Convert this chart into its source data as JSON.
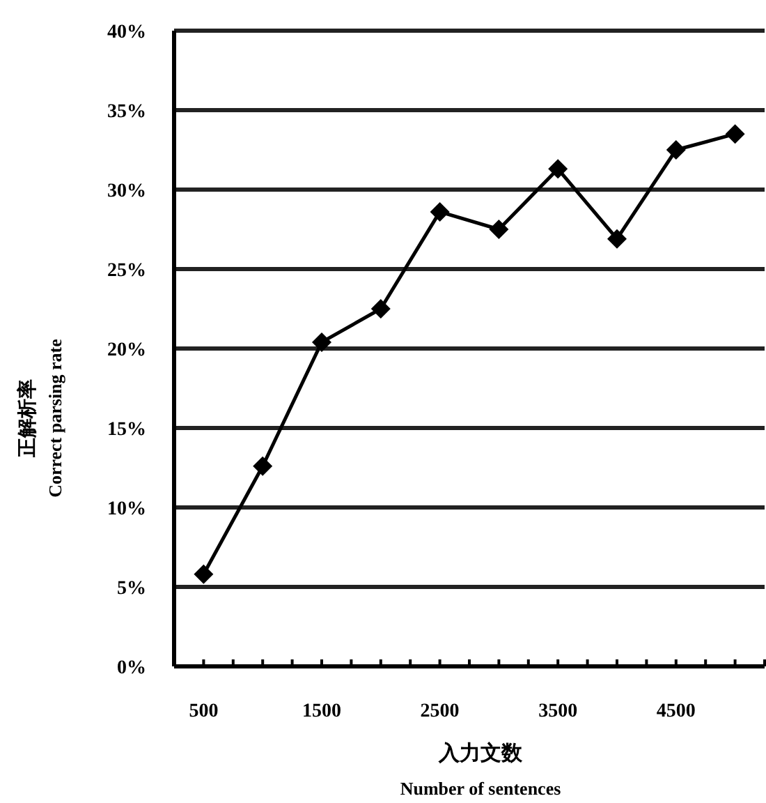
{
  "chart_data": {
    "type": "line",
    "xlabel": "入力文数",
    "ylabel": "正解析率",
    "annotations": [
      "Correct parsing rate",
      "Number of sentences"
    ],
    "x": [
      500,
      1000,
      1500,
      2000,
      2500,
      3000,
      3500,
      4000,
      4500,
      5000
    ],
    "series": [
      {
        "color": "#000000",
        "values": [
          5.8,
          12.6,
          20.4,
          22.5,
          28.6,
          27.5,
          31.3,
          26.9,
          32.5,
          33.5
        ]
      }
    ],
    "xlim": [
      250,
      5250
    ],
    "xticks": [
      500,
      {
        "value": 750,
        "label": null
      },
      {
        "value": 1000,
        "label": null
      },
      {
        "value": 1250,
        "label": null
      },
      1500,
      {
        "value": 1750,
        "label": null
      },
      {
        "value": 2000,
        "label": null
      },
      {
        "value": 2250,
        "label": null
      },
      2500,
      {
        "value": 2750,
        "label": null
      },
      {
        "value": 3000,
        "label": null
      },
      {
        "value": 3250,
        "label": null
      },
      3500,
      {
        "value": 3750,
        "label": null
      },
      {
        "value": 4000,
        "label": null
      },
      {
        "value": 4250,
        "label": null
      },
      4500,
      {
        "value": 4750,
        "label": null
      },
      {
        "value": 5000,
        "label": null
      },
      {
        "value": 5250,
        "label": null
      }
    ],
    "ylim": [
      0,
      40
    ],
    "yticks": [
      {
        "value": 0,
        "label": "0%"
      },
      {
        "value": 5,
        "label": "5%"
      },
      {
        "value": 10,
        "label": "10%"
      },
      {
        "value": 15,
        "label": "15%"
      },
      {
        "value": 20,
        "label": "20%"
      },
      {
        "value": 25,
        "label": "25%"
      },
      {
        "value": 30,
        "label": "30%"
      },
      {
        "value": 35,
        "label": "35%"
      },
      {
        "value": 40,
        "label": "40%"
      }
    ],
    "grid": "y",
    "marker": "diamond",
    "line_style": "solid"
  }
}
